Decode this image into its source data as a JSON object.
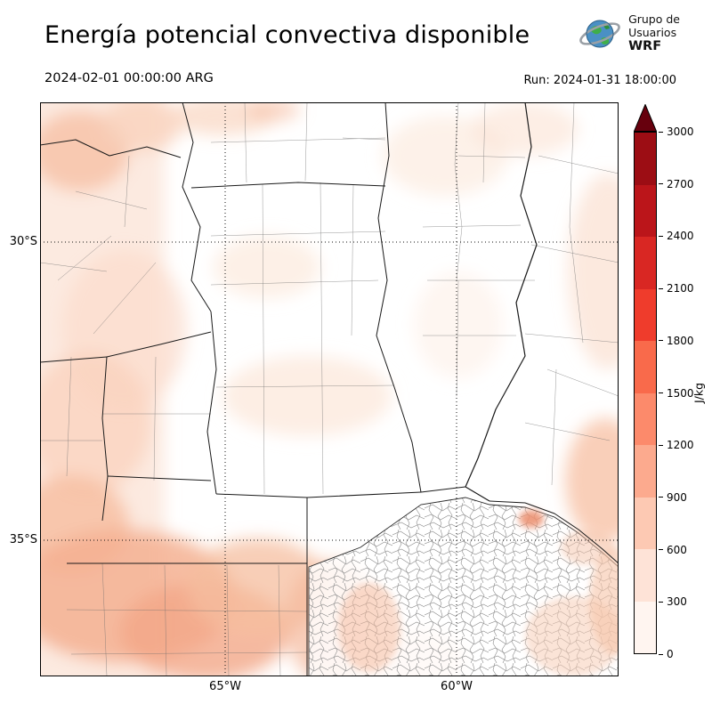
{
  "header": {
    "title": "Energía potencial convectiva disponible",
    "logo": {
      "line1": "Grupo de",
      "line2": "Usuarios",
      "line3": "WRF"
    }
  },
  "subheader": {
    "valid_time": "2024-02-01 00:00:00 ARG",
    "run": "Run: 2024-01-31 18:00:00"
  },
  "map": {
    "lat_labels": [
      "30°S",
      "35°S"
    ],
    "lon_labels": [
      "65°W",
      "60°W"
    ]
  },
  "colorbar": {
    "unit": "J/kg",
    "ticks": [
      "3000",
      "2700",
      "2400",
      "2100",
      "1800",
      "1500",
      "1200",
      "900",
      "600",
      "300",
      "0"
    ],
    "min": 0,
    "max": 3000,
    "step": 300,
    "colors": [
      "#fff5f0",
      "#fee3d7",
      "#fdc9b3",
      "#fcaa8e",
      "#fc8a6b",
      "#f96a4b",
      "#ef3c2c",
      "#d92723",
      "#bb151a",
      "#9c0d14"
    ],
    "over_color": "#67000d"
  }
}
